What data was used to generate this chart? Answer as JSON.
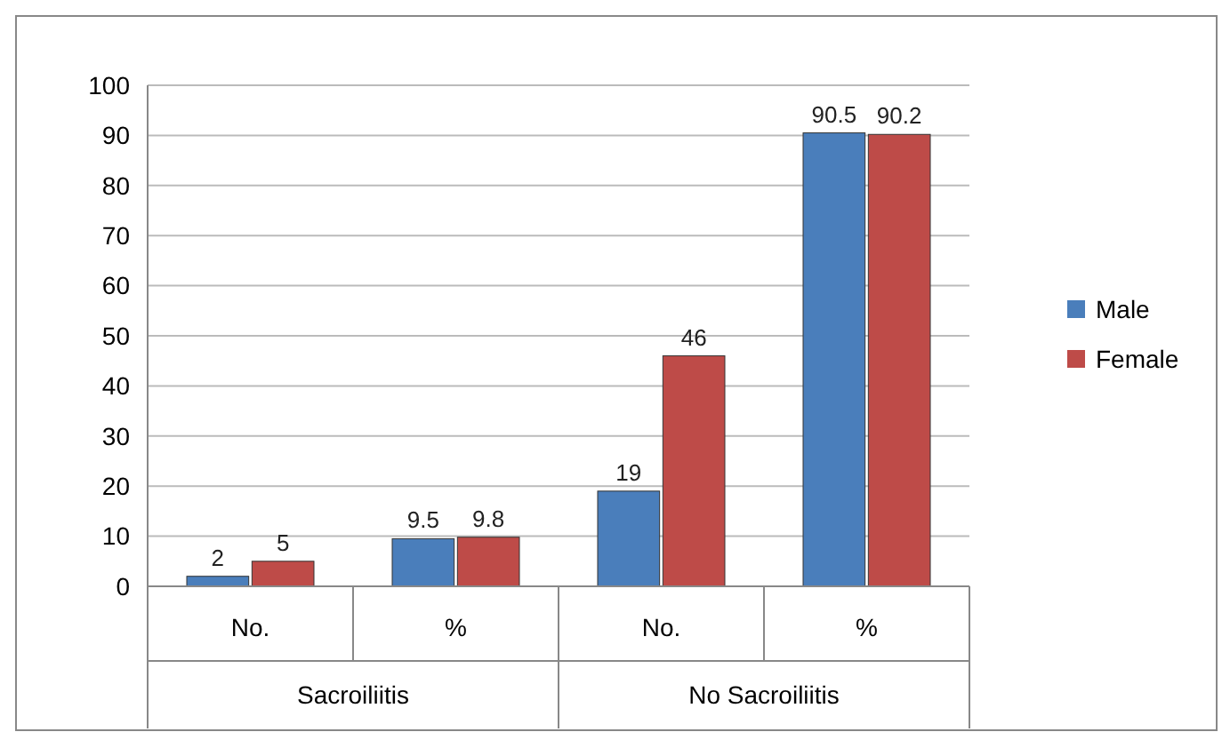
{
  "chart_data": {
    "type": "bar",
    "categories": [
      "No.",
      "%",
      "No.",
      "%"
    ],
    "series": [
      {
        "name": "Male",
        "color": "#4a7ebb",
        "values": [
          2,
          9.5,
          19,
          90.5
        ]
      },
      {
        "name": "Female",
        "color": "#be4b48",
        "values": [
          5,
          9.8,
          46,
          90.2
        ]
      }
    ],
    "ylim": [
      0,
      100
    ],
    "yticks": [
      0,
      10,
      20,
      30,
      40,
      50,
      60,
      70,
      80,
      90,
      100
    ],
    "grid": "y",
    "legend": "right",
    "data_labels": true,
    "annotations": [
      "Sacroiliitis",
      "No Sacroiliitis"
    ]
  }
}
